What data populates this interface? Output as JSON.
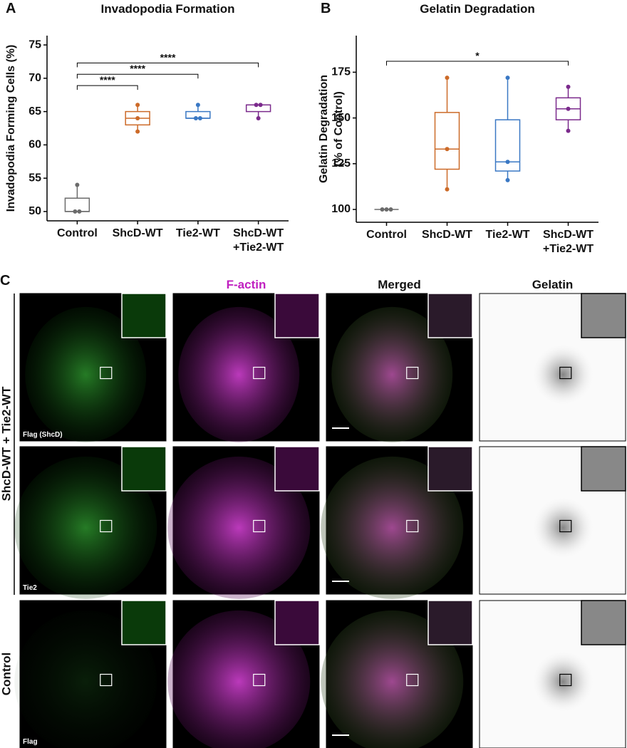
{
  "chart_data": [
    {
      "type": "box",
      "panel": "A",
      "title": "Invadopodia Formation",
      "ylabel": [
        "Invadopodia Forming Cells (%)"
      ],
      "categories": [
        [
          "Control"
        ],
        [
          "ShcD-WT"
        ],
        [
          "Tie2-WT"
        ],
        [
          "ShcD-WT",
          "+Tie2-WT"
        ]
      ],
      "colors": [
        "#6b6b6b",
        "#cc6a28",
        "#3a78c4",
        "#7b2a8c"
      ],
      "boxes": [
        {
          "min": 50,
          "q1": 50,
          "median": 50,
          "q3": 52,
          "max": 54,
          "points": [
            50,
            50,
            54
          ]
        },
        {
          "min": 62,
          "q1": 63,
          "median": 64,
          "q3": 65,
          "max": 66,
          "points": [
            62,
            64,
            66
          ]
        },
        {
          "min": 64,
          "q1": 64,
          "median": 64,
          "q3": 65,
          "max": 66,
          "points": [
            64,
            64,
            66
          ]
        },
        {
          "min": 64,
          "q1": 65,
          "median": 66,
          "q3": 66,
          "max": 66,
          "points": [
            64,
            66,
            66
          ]
        }
      ],
      "ylim": [
        48.6,
        76.4
      ],
      "yticks": [
        50,
        55,
        60,
        65,
        70,
        75
      ],
      "annotations": [
        {
          "from": 0,
          "to": 1,
          "y": 68.9,
          "label": "****"
        },
        {
          "from": 0,
          "to": 2,
          "y": 70.6,
          "label": "****"
        },
        {
          "from": 0,
          "to": 3,
          "y": 72.3,
          "label": "****"
        }
      ]
    },
    {
      "type": "box",
      "panel": "B",
      "title": "Gelatin Degradation",
      "ylabel": [
        "Gelatin Degradation",
        "(% of Control)"
      ],
      "categories": [
        [
          "Control"
        ],
        [
          "ShcD-WT"
        ],
        [
          "Tie2-WT"
        ],
        [
          "ShcD-WT",
          "+Tie2-WT"
        ]
      ],
      "colors": [
        "#6b6b6b",
        "#cc6a28",
        "#3a78c4",
        "#7b2a8c"
      ],
      "boxes": [
        {
          "min": 100,
          "q1": 100,
          "median": 100,
          "q3": 100,
          "max": 100,
          "points": [
            100,
            100,
            100
          ]
        },
        {
          "min": 111,
          "q1": 122,
          "median": 133,
          "q3": 153,
          "max": 172,
          "points": [
            111,
            133,
            172
          ]
        },
        {
          "min": 116,
          "q1": 121,
          "median": 126,
          "q3": 149,
          "max": 172,
          "points": [
            116,
            126,
            172
          ]
        },
        {
          "min": 143,
          "q1": 149,
          "median": 155,
          "q3": 161,
          "max": 167,
          "points": [
            143,
            155,
            167
          ]
        }
      ],
      "ylim": [
        93,
        195
      ],
      "yticks": [
        100,
        125,
        150,
        175
      ],
      "annotations": [
        {
          "from": 0,
          "to": 3,
          "y": 181,
          "label": "*"
        }
      ]
    }
  ],
  "panel_c": {
    "label": "C",
    "columns": [
      "F-actin",
      "Merged",
      "Gelatin"
    ],
    "row_groups": [
      "ShcD-WT + Tie2-WT",
      "Control"
    ],
    "image_labels": [
      "Flag (ShcD)",
      "Tie2",
      "Flag"
    ]
  }
}
